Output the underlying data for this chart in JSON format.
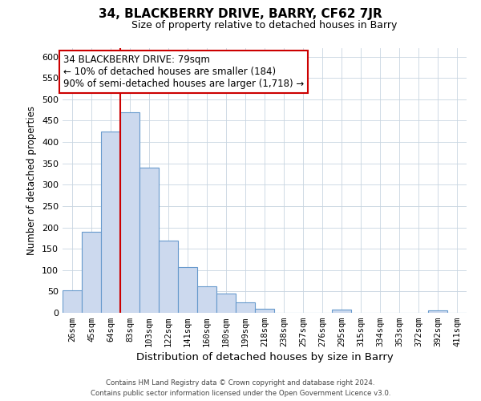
{
  "title": "34, BLACKBERRY DRIVE, BARRY, CF62 7JR",
  "subtitle": "Size of property relative to detached houses in Barry",
  "xlabel": "Distribution of detached houses by size in Barry",
  "ylabel": "Number of detached properties",
  "bar_labels": [
    "26sqm",
    "45sqm",
    "64sqm",
    "83sqm",
    "103sqm",
    "122sqm",
    "141sqm",
    "160sqm",
    "180sqm",
    "199sqm",
    "218sqm",
    "238sqm",
    "257sqm",
    "276sqm",
    "295sqm",
    "315sqm",
    "334sqm",
    "353sqm",
    "372sqm",
    "392sqm",
    "411sqm"
  ],
  "bar_heights": [
    52,
    190,
    425,
    470,
    340,
    170,
    107,
    62,
    46,
    25,
    10,
    0,
    0,
    0,
    8,
    0,
    0,
    0,
    0,
    5,
    0
  ],
  "bar_color": "#ccd9ee",
  "bar_edge_color": "#6699cc",
  "ylim": [
    0,
    620
  ],
  "yticks": [
    0,
    50,
    100,
    150,
    200,
    250,
    300,
    350,
    400,
    450,
    500,
    550,
    600
  ],
  "vline_x_index": 3,
  "vline_color": "#cc0000",
  "annotation_title": "34 BLACKBERRY DRIVE: 79sqm",
  "annotation_line1": "← 10% of detached houses are smaller (184)",
  "annotation_line2": "90% of semi-detached houses are larger (1,718) →",
  "annotation_box_color": "#ffffff",
  "annotation_box_edge": "#cc0000",
  "footer1": "Contains HM Land Registry data © Crown copyright and database right 2024.",
  "footer2": "Contains public sector information licensed under the Open Government Licence v3.0.",
  "background_color": "#ffffff",
  "grid_color": "#c8d4e0"
}
